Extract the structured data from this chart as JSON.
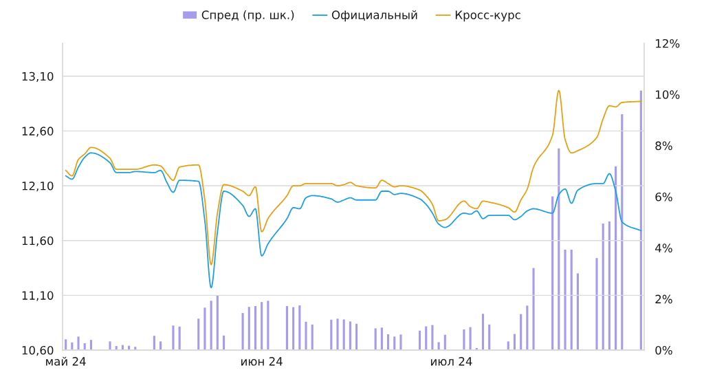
{
  "chart_data": {
    "type": "line",
    "legend": "top",
    "grid": "y",
    "x": [
      "2024-05-01",
      "2024-05-02",
      "2024-05-03",
      "2024-05-04",
      "2024-05-05",
      "2024-05-08",
      "2024-05-09",
      "2024-05-10",
      "2024-05-11",
      "2024-05-12",
      "2024-05-15",
      "2024-05-16",
      "2024-05-17",
      "2024-05-18",
      "2024-05-19",
      "2024-05-22",
      "2024-05-23",
      "2024-05-24",
      "2024-05-25",
      "2024-05-26",
      "2024-05-29",
      "2024-05-30",
      "2024-05-31",
      "2024-06-01",
      "2024-06-02",
      "2024-06-05",
      "2024-06-06",
      "2024-06-07",
      "2024-06-08",
      "2024-06-09",
      "2024-06-12",
      "2024-06-13",
      "2024-06-14",
      "2024-06-15",
      "2024-06-16",
      "2024-06-19",
      "2024-06-20",
      "2024-06-21",
      "2024-06-22",
      "2024-06-23",
      "2024-06-26",
      "2024-06-27",
      "2024-06-28",
      "2024-06-29",
      "2024-06-30",
      "2024-07-03",
      "2024-07-04",
      "2024-07-05",
      "2024-07-06",
      "2024-07-07",
      "2024-07-10",
      "2024-07-11",
      "2024-07-12",
      "2024-07-13",
      "2024-07-14",
      "2024-07-17",
      "2024-07-18",
      "2024-07-19",
      "2024-07-20",
      "2024-07-21",
      "2024-07-24",
      "2024-07-25",
      "2024-07-26",
      "2024-07-27",
      "2024-07-28",
      "2024-07-31"
    ],
    "xlim": [
      "2024-04-30T12:00",
      "2024-07-31T12:00"
    ],
    "xticks": [
      {
        "value": "2024-05-01",
        "label": "май 24"
      },
      {
        "value": "2024-06-01",
        "label": "июн 24"
      },
      {
        "value": "2024-07-01",
        "label": "июл 24"
      }
    ],
    "ylim": [
      10.6,
      13.4
    ],
    "yticks": [
      {
        "value": 10.6,
        "label": "10,60"
      },
      {
        "value": 11.1,
        "label": "11,10"
      },
      {
        "value": 11.6,
        "label": "11,60"
      },
      {
        "value": 12.1,
        "label": "12,10"
      },
      {
        "value": 12.6,
        "label": "12,60"
      },
      {
        "value": 13.1,
        "label": "13,10"
      }
    ],
    "y2lim": [
      0,
      12
    ],
    "y2ticks": [
      {
        "value": 0,
        "label": "0%"
      },
      {
        "value": 2,
        "label": "2%"
      },
      {
        "value": 4,
        "label": "4%"
      },
      {
        "value": 6,
        "label": "6%"
      },
      {
        "value": 8,
        "label": "8%"
      },
      {
        "value": 10,
        "label": "10%"
      },
      {
        "value": 12,
        "label": "12%"
      }
    ],
    "series": [
      {
        "name": "Спред (пр. шк.)",
        "type": "bar",
        "axis": "y2",
        "color": "#a59deb",
        "values": [
          0.42,
          0.3,
          0.53,
          0.27,
          0.4,
          0.34,
          0.16,
          0.2,
          0.17,
          0.13,
          0.56,
          0.34,
          null,
          0.96,
          0.92,
          1.23,
          1.66,
          1.93,
          2.13,
          0.57,
          1.45,
          1.69,
          1.72,
          1.88,
          1.93,
          1.72,
          1.68,
          1.75,
          1.11,
          1.0,
          1.19,
          1.23,
          1.2,
          1.12,
          1.03,
          0.85,
          0.88,
          0.62,
          0.53,
          0.61,
          0.76,
          0.93,
          0.98,
          0.31,
          0.6,
          0.81,
          0.9,
          0.08,
          1.42,
          1.0,
          0.34,
          0.63,
          1.41,
          1.74,
          3.21,
          6.01,
          7.89,
          3.93,
          3.93,
          3.0,
          3.6,
          4.95,
          5.03,
          7.19,
          9.23,
          10.15
        ]
      },
      {
        "name": "Официальный",
        "color": "#1ea0e0",
        "values": [
          12.19,
          12.16,
          12.27,
          12.36,
          12.4,
          12.31,
          12.22,
          12.22,
          12.22,
          12.23,
          12.22,
          12.24,
          12.13,
          12.04,
          12.15,
          12.14,
          11.78,
          11.17,
          11.68,
          12.05,
          11.92,
          11.82,
          11.89,
          11.46,
          11.57,
          11.8,
          11.9,
          11.89,
          11.99,
          12.01,
          11.98,
          11.95,
          11.97,
          11.99,
          11.97,
          11.97,
          12.05,
          12.05,
          12.02,
          12.03,
          11.98,
          11.93,
          11.85,
          11.75,
          11.72,
          11.85,
          11.84,
          11.87,
          11.8,
          11.83,
          11.83,
          11.79,
          11.82,
          11.87,
          11.89,
          11.85,
          12.02,
          12.07,
          11.94,
          12.06,
          12.12,
          12.12,
          12.21,
          12.05,
          11.77,
          11.69
        ]
      },
      {
        "name": "Кросс-курс",
        "color": "#e8a013",
        "values": [
          12.24,
          12.19,
          12.34,
          12.39,
          12.45,
          12.35,
          12.25,
          12.25,
          12.25,
          12.25,
          12.29,
          12.28,
          12.21,
          12.15,
          12.27,
          12.29,
          11.97,
          11.38,
          11.85,
          12.11,
          12.05,
          12.01,
          12.09,
          11.68,
          11.8,
          12.01,
          12.1,
          12.1,
          12.12,
          12.12,
          12.12,
          12.1,
          12.11,
          12.13,
          12.1,
          12.08,
          12.15,
          12.12,
          12.09,
          12.1,
          12.06,
          12.01,
          11.93,
          11.78,
          11.79,
          11.96,
          11.91,
          11.89,
          11.96,
          11.95,
          11.9,
          11.86,
          11.97,
          12.07,
          12.27,
          12.56,
          12.97,
          12.52,
          12.4,
          12.42,
          12.54,
          12.71,
          12.83,
          12.82,
          12.86,
          12.87
        ]
      }
    ]
  }
}
